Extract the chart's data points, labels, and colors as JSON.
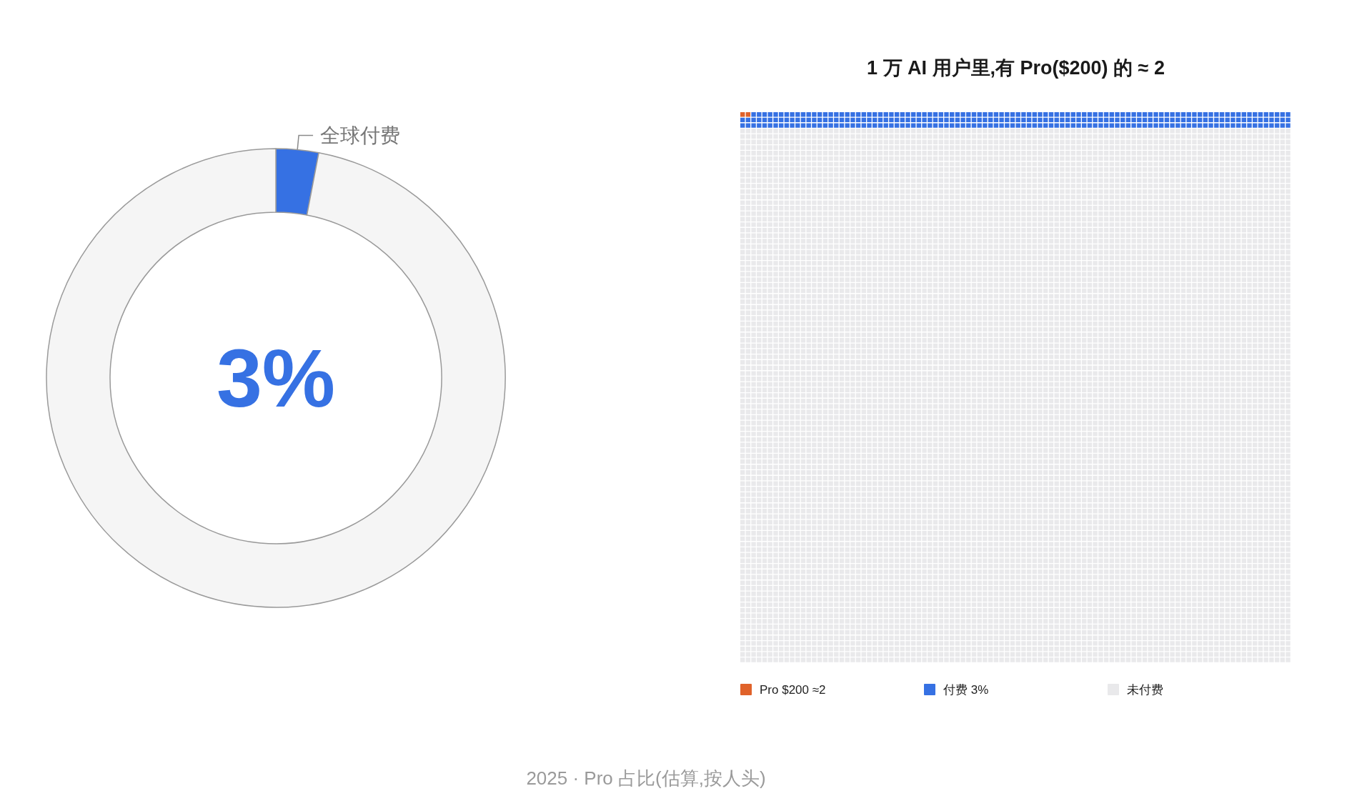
{
  "chart_data": [
    {
      "type": "donut",
      "categories": [
        "全球付费",
        null
      ],
      "values": [
        3,
        97
      ],
      "colors": [
        "#3671e3",
        "#f5f5f5"
      ],
      "annotations": [
        "3%"
      ]
    },
    {
      "type": "other",
      "title": "1 万 AI 用户里,有 Pro($200) 的 ≈ 2",
      "categories": [
        "Pro $200 ≈2",
        "付费 3%",
        "未付费"
      ],
      "colors": [
        "#e0622a",
        "#3671e3",
        "#e9e9eb"
      ],
      "annotations": [
        "2025 · Pro 占比(估算,按人头)"
      ]
    }
  ]
}
